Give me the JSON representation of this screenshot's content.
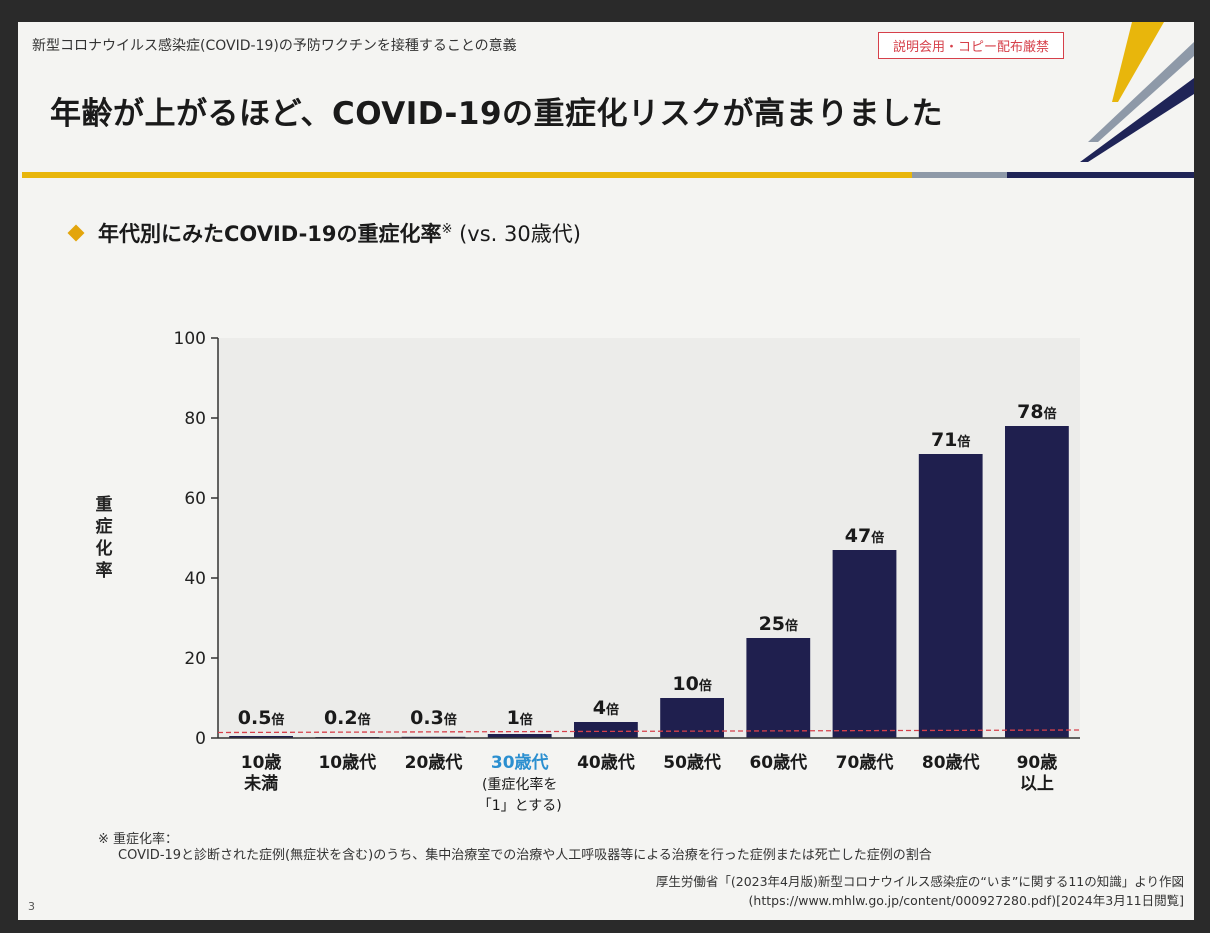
{
  "header": {
    "subtitle": "新型コロナウイルス感染症(COVID-19)の予防ワクチンを接種することの意義",
    "notice": "説明会用・コピー配布厳禁",
    "title": "年齢が上がるほど、COVID-19の重症化リスクが高まりました"
  },
  "subhead": {
    "text": "年代別にみたCOVID-19の重症化率",
    "mark": "※",
    "comparison": " (vs. 30歳代)"
  },
  "chart_data": {
    "type": "bar",
    "ylabel": "重症化率",
    "ylim": [
      0,
      100
    ],
    "yticks": [
      "0",
      "20",
      "40",
      "60",
      "80",
      "100"
    ],
    "categories": [
      [
        "10歳",
        "未満"
      ],
      [
        "10歳代"
      ],
      [
        "20歳代"
      ],
      [
        "30歳代",
        "(重症化率を",
        "「1」とする)"
      ],
      [
        "40歳代"
      ],
      [
        "50歳代"
      ],
      [
        "60歳代"
      ],
      [
        "70歳代"
      ],
      [
        "80歳代"
      ],
      [
        "90歳",
        "以上"
      ]
    ],
    "values": [
      0.5,
      0.2,
      0.3,
      1,
      4,
      10,
      25,
      47,
      71,
      78
    ],
    "value_labels": [
      "0.5",
      "0.2",
      "0.3",
      "1",
      "4",
      "10",
      "25",
      "47",
      "71",
      "78"
    ],
    "unit": "倍",
    "highlight_index": 3,
    "reference_line": 1,
    "colors": {
      "bar": "#1f1f4e",
      "highlight_label": "#2b8fd0",
      "reference": "#d6404a",
      "axis": "#333333"
    }
  },
  "footnote": {
    "head": "※ 重症化率：",
    "body": "COVID-19と診断された症例(無症状を含む)のうち、集中治療室での治療や人工呼吸器等による治療を行った症例または死亡した症例の割合"
  },
  "source": {
    "line1": "厚生労働省「(2023年4月版)新型コロナウイルス感染症の“いま”に関する11の知識」より作図",
    "line2": "(https://www.mhlw.go.jp/content/000927280.pdf)[2024年3月11日閲覧]"
  },
  "page_number": "3"
}
